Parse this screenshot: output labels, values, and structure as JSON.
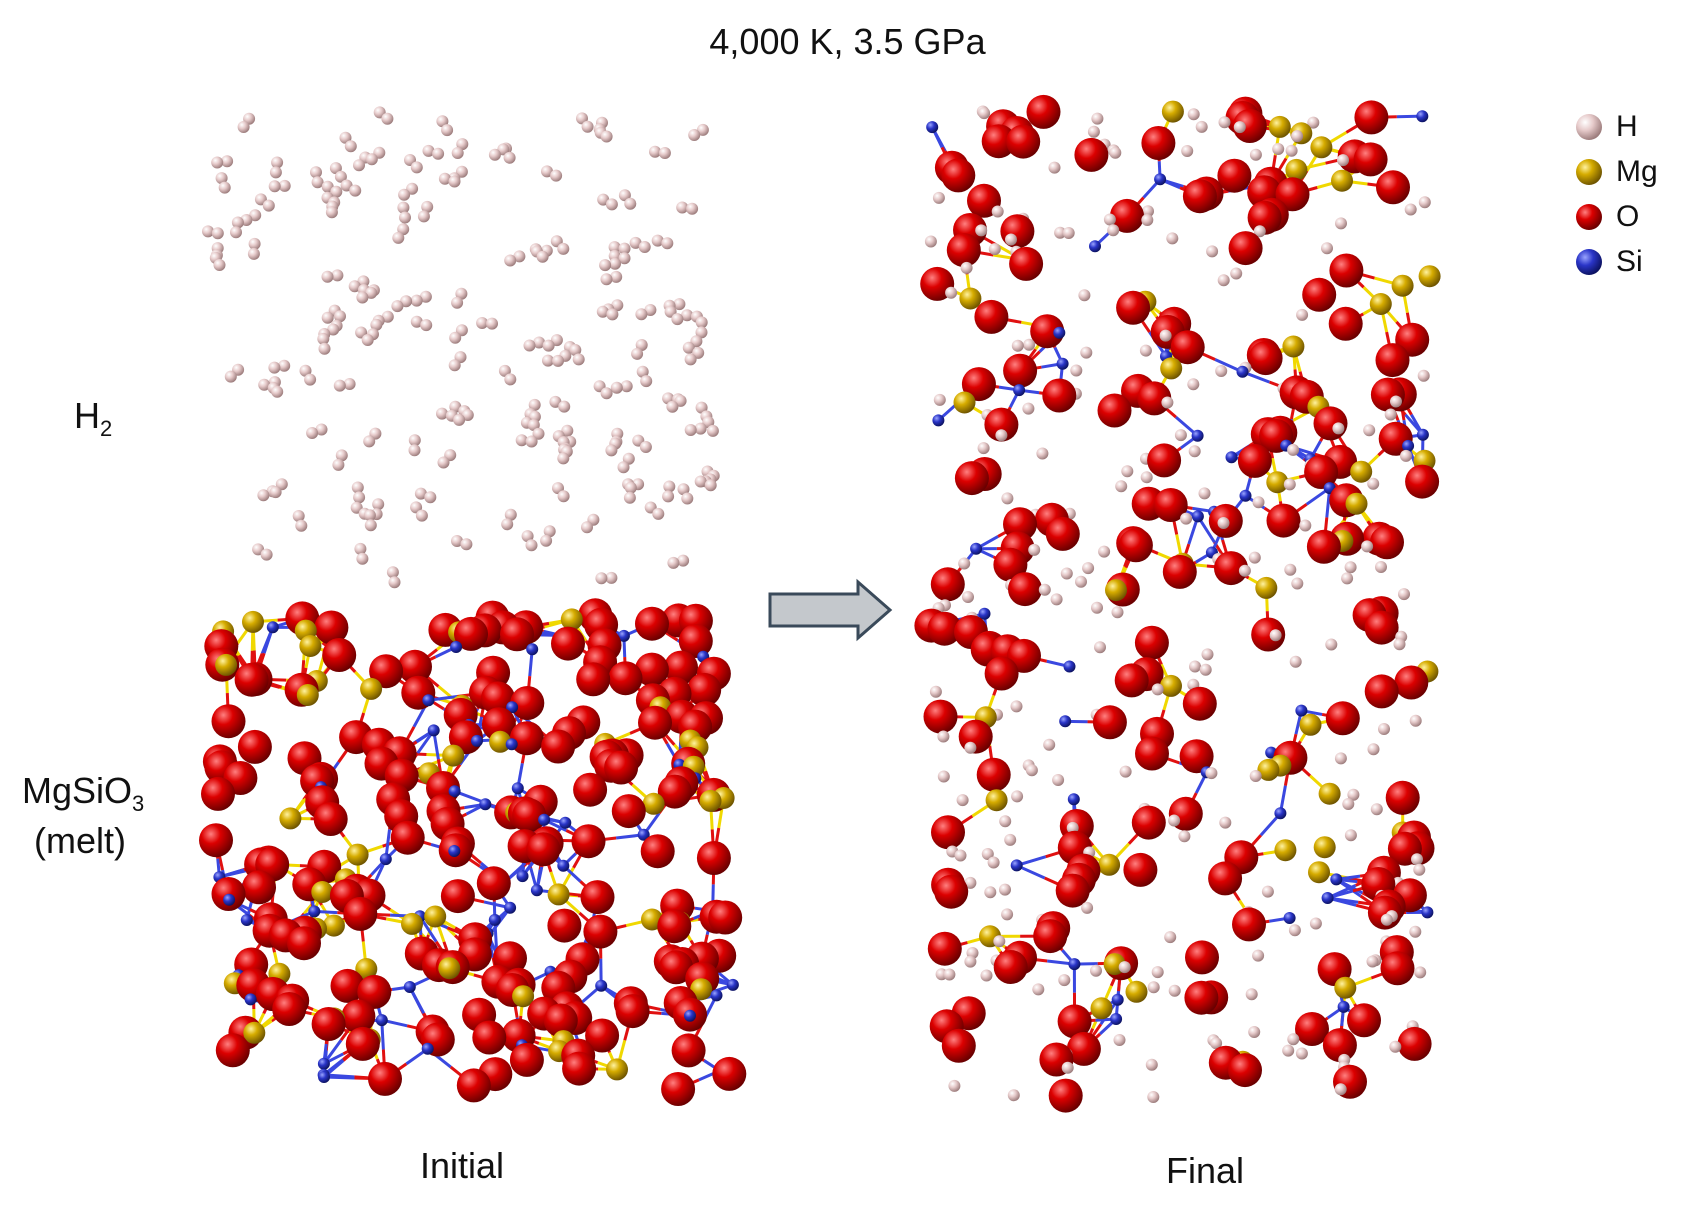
{
  "title": "4,000 K, 3.5 GPa",
  "upper_phase": {
    "formula": "H",
    "subscript": "2"
  },
  "lower_phase": {
    "formula": "MgSiO",
    "subscript": "3",
    "state": "(melt)"
  },
  "captions": {
    "initial": "Initial",
    "final": "Final"
  },
  "legend": [
    {
      "label": "H",
      "color": "#d9b8b8",
      "icon": "hydrogen-atom-icon"
    },
    {
      "label": "Mg",
      "color": "#c8a000",
      "icon": "magnesium-atom-icon"
    },
    {
      "label": "O",
      "color": "#d00000",
      "icon": "oxygen-atom-icon"
    },
    {
      "label": "Si",
      "color": "#2a35c8",
      "icon": "silicon-atom-icon"
    }
  ],
  "colors": {
    "H": "#d9b8b8",
    "Mg": "#c8a000",
    "O": "#d00000",
    "Si": "#2a35c8",
    "bond_mg": "#f0d800",
    "bond_si": "#3a48e0",
    "arrow_fill": "#c4c8cc",
    "arrow_stroke": "#3a4a5a"
  },
  "transition_arrow": {
    "icon": "right-arrow-icon"
  }
}
